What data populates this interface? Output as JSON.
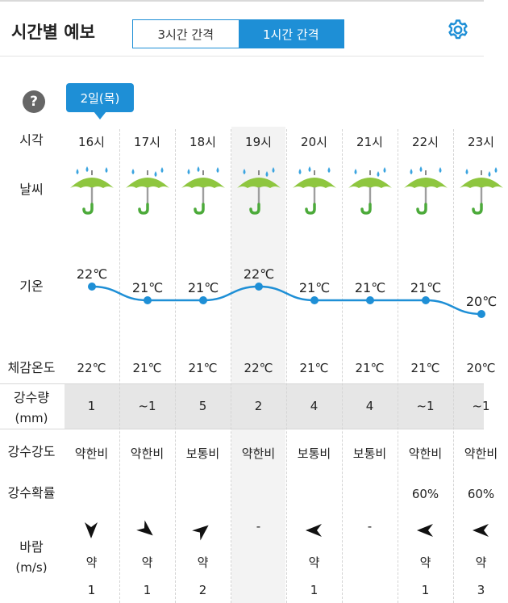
{
  "header": {
    "title": "시간별 예보",
    "toggle": [
      "3시간 간격",
      "1시간 간격"
    ],
    "settings_icon": "gear-icon"
  },
  "date_bubble": "2일(목)",
  "help_label": "?",
  "row_labels": {
    "time": "시각",
    "weather": "날씨",
    "temp": "기온",
    "feels": "체감온도",
    "precip": "강수량",
    "precip_unit": "(mm)",
    "intensity": "강수강도",
    "probability": "강수확률",
    "wind": "바람",
    "wind_unit": "(m/s)"
  },
  "hours": [
    {
      "time": "16시",
      "weather_icon": "rain-umbrella-icon",
      "temp": "22℃",
      "temp_value": 22,
      "feels": "22℃",
      "precip": "1",
      "intensity": "약한비",
      "probability": "",
      "wind_dir": "S",
      "wind_strength": "약",
      "wind_speed": "1"
    },
    {
      "time": "17시",
      "weather_icon": "rain-umbrella-icon",
      "temp": "21℃",
      "temp_value": 21,
      "feels": "21℃",
      "precip": "~1",
      "intensity": "약한비",
      "probability": "",
      "wind_dir": "SE",
      "wind_strength": "약",
      "wind_speed": "1"
    },
    {
      "time": "18시",
      "weather_icon": "rain-umbrella-icon",
      "temp": "21℃",
      "temp_value": 21,
      "feels": "21℃",
      "precip": "5",
      "intensity": "보통비",
      "probability": "",
      "wind_dir": "NE",
      "wind_strength": "약",
      "wind_speed": "2"
    },
    {
      "time": "19시",
      "weather_icon": "rain-umbrella-icon",
      "temp": "22℃",
      "temp_value": 22,
      "feels": "22℃",
      "precip": "2",
      "intensity": "약한비",
      "probability": "",
      "wind_dir": "-",
      "wind_strength": "",
      "wind_speed": ""
    },
    {
      "time": "20시",
      "weather_icon": "rain-umbrella-icon",
      "temp": "21℃",
      "temp_value": 21,
      "feels": "21℃",
      "precip": "4",
      "intensity": "보통비",
      "probability": "",
      "wind_dir": "W",
      "wind_strength": "약",
      "wind_speed": "1"
    },
    {
      "time": "21시",
      "weather_icon": "rain-umbrella-icon",
      "temp": "21℃",
      "temp_value": 21,
      "feels": "21℃",
      "precip": "4",
      "intensity": "보통비",
      "probability": "",
      "wind_dir": "-",
      "wind_strength": "",
      "wind_speed": ""
    },
    {
      "time": "22시",
      "weather_icon": "rain-umbrella-icon",
      "temp": "21℃",
      "temp_value": 21,
      "feels": "21℃",
      "precip": "~1",
      "intensity": "약한비",
      "probability": "60%",
      "wind_dir": "W",
      "wind_strength": "약",
      "wind_speed": "1"
    },
    {
      "time": "23시",
      "weather_icon": "rain-umbrella-icon",
      "temp": "20℃",
      "temp_value": 20,
      "feels": "20℃",
      "precip": "~1",
      "intensity": "약한비",
      "probability": "60%",
      "wind_dir": "W",
      "wind_strength": "약",
      "wind_speed": "3"
    }
  ],
  "colors": {
    "accent": "#1e8fd6",
    "umbrella": "#8ec63f",
    "umbrella_handle": "#4caa3a",
    "rain_drop": "#3ba4e0"
  }
}
